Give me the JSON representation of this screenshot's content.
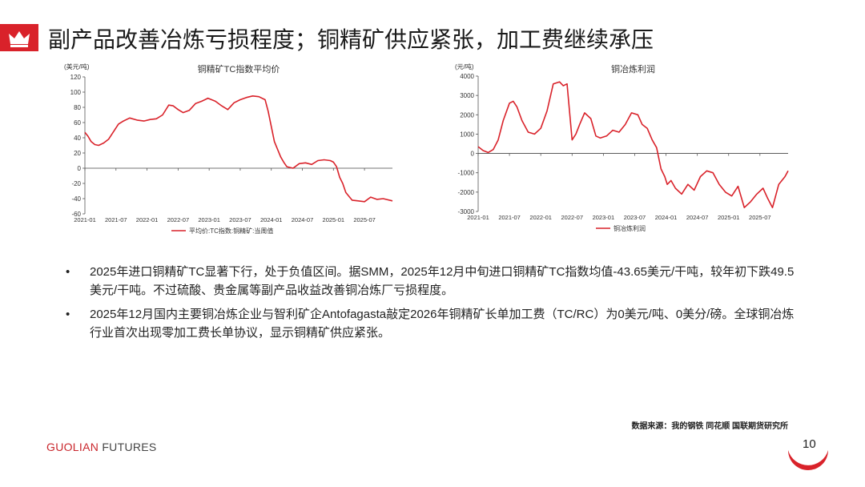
{
  "page": {
    "title": "副产品改善冶炼亏损程度；铜精矿供应紧张，加工费继续承压",
    "bullets": [
      "2025年进口铜精矿TC显著下行，处于负值区间。据SMM，2025年12月中旬进口铜精矿TC指数均值-43.65美元/干吨，较年初下跌49.5美元/干吨。不过硫酸、贵金属等副产品收益改善铜冶炼厂亏损程度。",
      "2025年12月国内主要铜冶炼企业与智利矿企Antofagasta敲定2026年铜精矿长单加工费（TC/RC）为0美元/吨、0美分/磅。全球铜冶炼行业首次出现零加工费长单协议，显示铜精矿供应紧张。"
    ],
    "source": "数据来源：我的钢铁  同花顺  国联期货研究所",
    "brand_a": "GUOLIAN",
    "brand_b": "FUTURES",
    "page_number": "10",
    "accent_color": "#d9222a"
  },
  "chart_data": [
    {
      "type": "line",
      "title": "铜精矿TC指数平均价",
      "ylabel": "(美元/吨)",
      "ylim": [
        -60,
        120
      ],
      "yticks": [
        -60,
        -40,
        -20,
        0,
        20,
        40,
        60,
        80,
        100,
        120
      ],
      "xlim": [
        2021.0,
        2025.95
      ],
      "xticks": [
        "2021-01",
        "2021-07",
        "2022-01",
        "2022-07",
        "2023-01",
        "2023-07",
        "2024-01",
        "2024-07",
        "2025-01",
        "2025-07"
      ],
      "legend": "平均价:TC指数:铜精矿:当周值",
      "grid": false,
      "color": "#d9222a",
      "x": [
        2021.0,
        2021.05,
        2021.1,
        2021.16,
        2021.22,
        2021.3,
        2021.38,
        2021.46,
        2021.54,
        2021.62,
        2021.72,
        2021.85,
        2021.95,
        2022.05,
        2022.15,
        2022.25,
        2022.35,
        2022.42,
        2022.5,
        2022.58,
        2022.68,
        2022.78,
        2022.88,
        2022.98,
        2023.1,
        2023.2,
        2023.3,
        2023.4,
        2023.5,
        2023.6,
        2023.7,
        2023.8,
        2023.9,
        2023.95,
        2024.0,
        2024.05,
        2024.1,
        2024.15,
        2024.2,
        2024.25,
        2024.35,
        2024.45,
        2024.55,
        2024.65,
        2024.75,
        2024.85,
        2024.95,
        2025.0,
        2025.05,
        2025.1,
        2025.15,
        2025.2,
        2025.3,
        2025.4,
        2025.5,
        2025.6,
        2025.7,
        2025.8,
        2025.95
      ],
      "y": [
        47,
        42,
        35,
        31,
        30,
        33,
        38,
        48,
        58,
        62,
        66,
        63,
        62,
        64,
        65,
        70,
        83,
        82,
        77,
        73,
        76,
        85,
        88,
        92,
        88,
        82,
        77,
        86,
        90,
        93,
        95,
        94,
        90,
        75,
        55,
        35,
        25,
        15,
        8,
        2,
        0,
        6,
        7,
        5,
        10,
        11,
        10,
        8,
        2,
        -12,
        -20,
        -32,
        -42,
        -43,
        -44,
        -38,
        -41,
        -40,
        -43
      ]
    },
    {
      "type": "line",
      "title": "铜冶炼利润",
      "ylabel": "(元/吨)",
      "ylim": [
        -3000,
        4000
      ],
      "yticks": [
        -3000,
        -2000,
        -1000,
        0,
        1000,
        2000,
        3000,
        4000
      ],
      "xlim": [
        2021.0,
        2025.95
      ],
      "xticks": [
        "2021-01",
        "2021-07",
        "2022-01",
        "2022-07",
        "2023-01",
        "2023-07",
        "2024-01",
        "2024-07",
        "2025-01",
        "2025-07"
      ],
      "legend": "铜冶炼利润",
      "grid": false,
      "color": "#d9222a",
      "x": [
        2021.0,
        2021.08,
        2021.16,
        2021.24,
        2021.32,
        2021.4,
        2021.5,
        2021.56,
        2021.62,
        2021.7,
        2021.8,
        2021.9,
        2022.0,
        2022.1,
        2022.2,
        2022.3,
        2022.36,
        2022.42,
        2022.5,
        2022.56,
        2022.62,
        2022.7,
        2022.8,
        2022.88,
        2022.95,
        2023.05,
        2023.15,
        2023.25,
        2023.35,
        2023.45,
        2023.55,
        2023.62,
        2023.7,
        2023.78,
        2023.85,
        2023.92,
        2023.98,
        2024.02,
        2024.08,
        2024.15,
        2024.25,
        2024.35,
        2024.45,
        2024.55,
        2024.65,
        2024.75,
        2024.85,
        2024.95,
        2025.05,
        2025.15,
        2025.25,
        2025.35,
        2025.45,
        2025.55,
        2025.62,
        2025.7,
        2025.8,
        2025.9,
        2025.95
      ],
      "y": [
        350,
        150,
        50,
        200,
        700,
        1700,
        2600,
        2700,
        2400,
        1700,
        1100,
        1000,
        1300,
        2200,
        3600,
        3700,
        3500,
        3600,
        700,
        1000,
        1500,
        2100,
        1800,
        900,
        800,
        900,
        1200,
        1100,
        1500,
        2100,
        2000,
        1500,
        1300,
        700,
        300,
        -800,
        -1200,
        -1600,
        -1400,
        -1800,
        -2100,
        -1600,
        -1900,
        -1200,
        -900,
        -1000,
        -1600,
        -2000,
        -2200,
        -1700,
        -2800,
        -2500,
        -2100,
        -1800,
        -2300,
        -2800,
        -1600,
        -1200,
        -900
      ]
    }
  ]
}
